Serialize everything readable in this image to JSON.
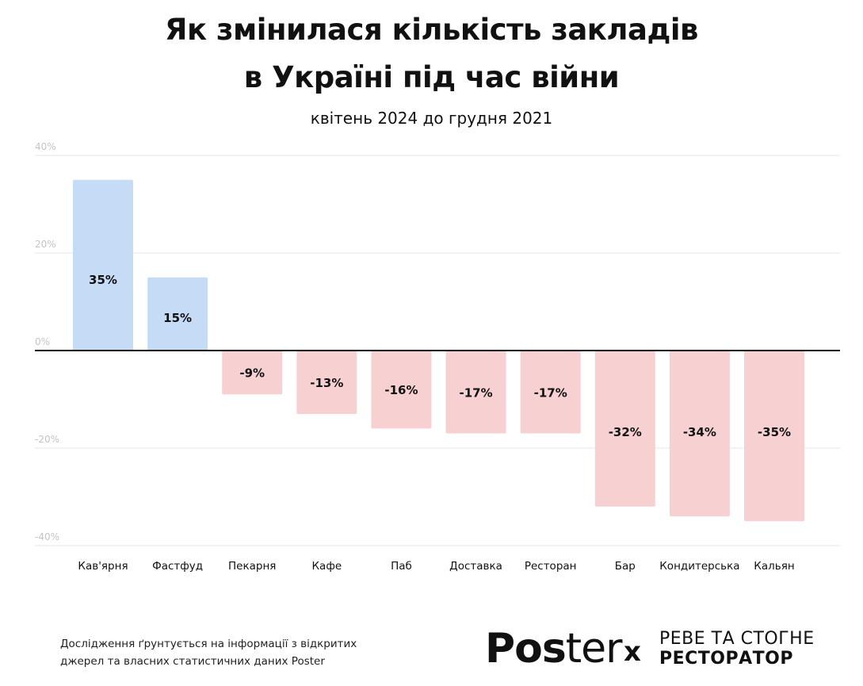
{
  "title_line1": "Як змінилася кількість закладів",
  "title_line2": "в Україні під час війни",
  "subtitle": "квітень 2024 до грудня 2021",
  "footnote_line1": "Дослідження ґрунтується на інформації з відкритих",
  "footnote_line2": "джерел та власних статистичних даних Poster",
  "logo": {
    "part1": "Pos",
    "part2": "ter",
    "separator": "x"
  },
  "partner_line1": "РЕВЕ ТА СТОГНЕ",
  "partner_line2": "РЕСТОРАТОР",
  "colors": {
    "positive": "#c6dcf6",
    "negative": "#f7d0d2",
    "grid": "#e6e6e6",
    "zero_line": "#111111",
    "tick": "#c4c4c4"
  },
  "chart_data": {
    "type": "bar",
    "title": "Як змінилася кількість закладів в Україні під час війни",
    "subtitle": "квітень 2024 до грудня 2021",
    "categories": [
      "Кав'ярня",
      "Фастфуд",
      "Пекарня",
      "Кафе",
      "Паб",
      "Доставка",
      "Ресторан",
      "Бар",
      "Кондитерська",
      "Кальян"
    ],
    "values": [
      35,
      15,
      -9,
      -13,
      -16,
      -17,
      -17,
      -32,
      -34,
      -35
    ],
    "value_labels": [
      "35%",
      "15%",
      "-9%",
      "-13%",
      "-16%",
      "-17%",
      "-17%",
      "-32%",
      "-34%",
      "-35%"
    ],
    "yticks": [
      40,
      20,
      0,
      -20,
      -40
    ],
    "ytick_labels": [
      "40%",
      "20%",
      "0%",
      "-20%",
      "-40%"
    ],
    "ylim": [
      -40,
      40
    ],
    "grid": true,
    "legend": "none",
    "xlabel": "",
    "ylabel": ""
  }
}
